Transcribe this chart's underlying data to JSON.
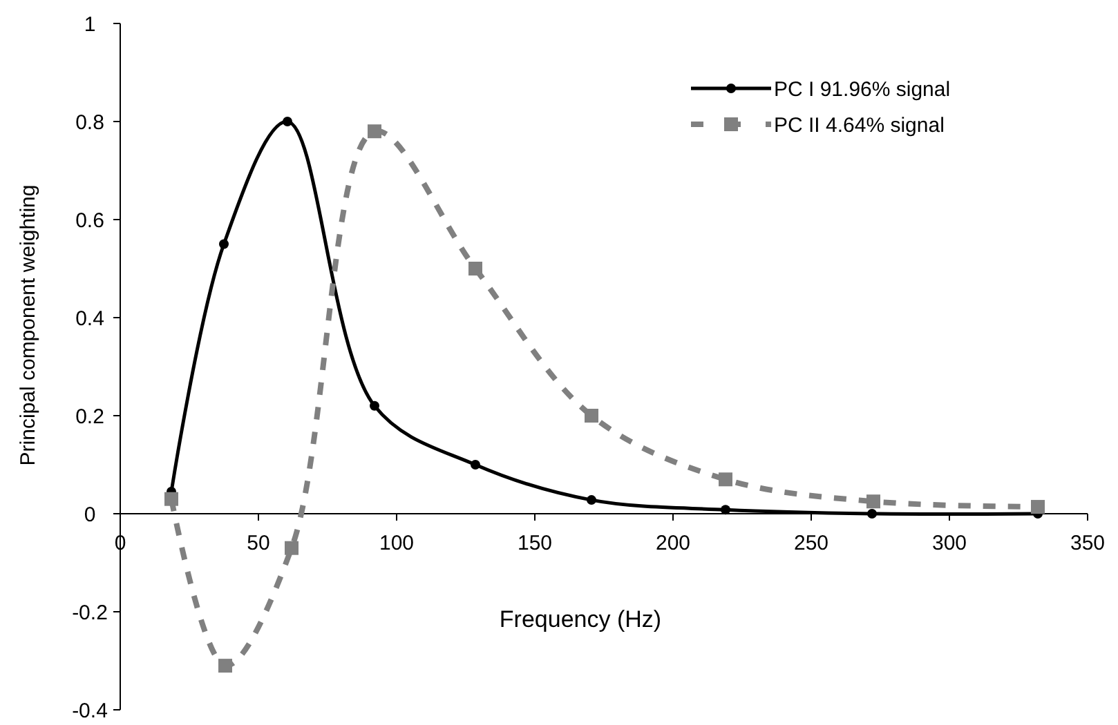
{
  "chart_data": {
    "type": "line",
    "xlabel": "Frequency (Hz)",
    "ylabel": "Principal component weighting",
    "xlim": [
      0,
      350
    ],
    "xticks": [
      0,
      50,
      100,
      150,
      200,
      250,
      300,
      350
    ],
    "ylim": [
      -0.4,
      1
    ],
    "yticks": [
      -0.4,
      -0.2,
      0,
      0.2,
      0.4,
      0.6,
      0.8,
      1
    ],
    "grid": false,
    "legend": "top right",
    "series": [
      {
        "name": "PC I 91.96% signal",
        "color": "#000000",
        "marker": "circle",
        "line_style": "solid",
        "x": [
          18.5,
          37.5,
          60.5,
          92,
          128.5,
          170.5,
          219,
          272,
          332
        ],
        "values": [
          0.045,
          0.55,
          0.8,
          0.22,
          0.1,
          0.028,
          0.008,
          0,
          0
        ]
      },
      {
        "name": "PC II 4.64% signal",
        "color": "#808080",
        "marker": "square",
        "line_style": "dashed",
        "x": [
          18.5,
          38,
          62,
          92,
          128.5,
          170.5,
          219,
          272.5,
          332
        ],
        "values": [
          0.03,
          -0.31,
          -0.07,
          0.78,
          0.5,
          0.2,
          0.07,
          0.025,
          0.014
        ]
      }
    ]
  }
}
